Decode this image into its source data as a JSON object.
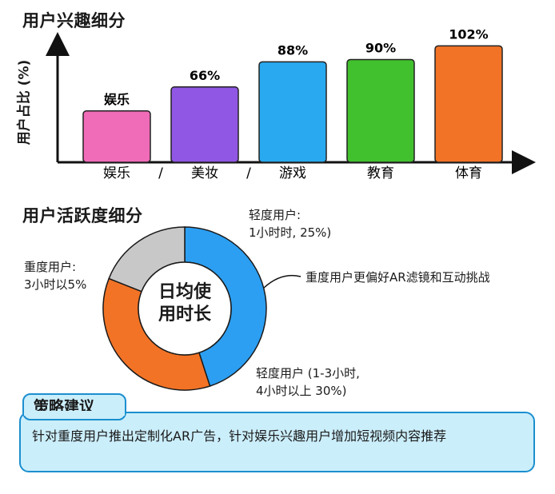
{
  "chart_data": [
    {
      "type": "bar",
      "title": "用户兴趣细分",
      "ylabel": "用户占比 (%)",
      "ylim": [
        0,
        110
      ],
      "categories": [
        "娱乐",
        "美妆",
        "游戏",
        "教育",
        "体育"
      ],
      "values": [
        45,
        66,
        88,
        90,
        102
      ],
      "value_labels": [
        "娱乐",
        "66%",
        "88%",
        "90%",
        "102%"
      ],
      "separators": [
        "/",
        "/"
      ],
      "colors": [
        "#f06bb8",
        "#9056e4",
        "#29a9ef",
        "#42c12e",
        "#f27326"
      ],
      "grid": false
    },
    {
      "type": "pie",
      "title": "用户活跃度细分",
      "center_label": [
        "日均使",
        "用时长"
      ],
      "slices": [
        {
          "label": "轻度用户 (1-3小时, 4小时以上 30%)",
          "value": 45,
          "color": "#2c9ff2"
        },
        {
          "label": "重度用户: 3小时以5%",
          "value": 36,
          "color": "#f27326"
        },
        {
          "label": "轻度用户: 1小时时, 25%)",
          "value": 19,
          "color": "#c8c8c8"
        }
      ]
    }
  ],
  "annotations": {
    "light_top": [
      "轻度用户:",
      "1小时时, 25%)"
    ],
    "heavy_left": [
      "重度用户:",
      "3小时以5%"
    ],
    "callout": "重度用户更偏好AR滤镜和互动挑战",
    "light_bottom": [
      "轻度用户 (1-3小时,",
      "4小时以上 30%)"
    ]
  },
  "strategy": {
    "title": "策略建议",
    "body": "针对重度用户推出定制化AR广告，针对娱乐兴趣用户增加短视频内容推荐"
  },
  "colors": {
    "box_fill": "#cbeefb",
    "box_border": "#1b8fcf"
  }
}
